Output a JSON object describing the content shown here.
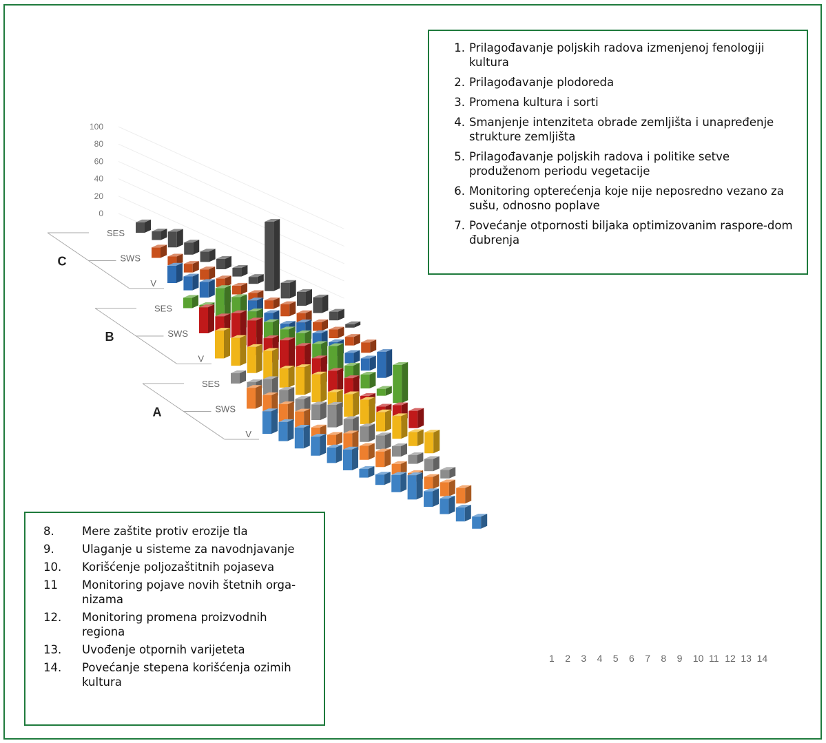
{
  "chart_data": {
    "type": "bar",
    "categories": [
      "1",
      "2",
      "3",
      "4",
      "5",
      "6",
      "7",
      "8",
      "9",
      "10",
      "11",
      "12",
      "13",
      "14"
    ],
    "x_tick_labels": [
      "1",
      "2",
      "3",
      "4",
      "5",
      "6",
      "7",
      "8",
      "9",
      "10",
      "11",
      "12",
      "13",
      "14"
    ],
    "y_ticks": [
      "100",
      "80",
      "60",
      "40",
      "20",
      "0"
    ],
    "ylim": [
      0,
      100
    ],
    "groups": [
      {
        "letter": "C",
        "rows": [
          {
            "label": "SES",
            "color": "#4d4d4d",
            "values": [
              12,
              10,
              18,
              14,
              12,
              12,
              10,
              8,
              80,
              18,
              16,
              18,
              10,
              4
            ]
          },
          {
            "label": "SWS",
            "color": "#c8501c",
            "values": [
              12,
              10,
              10,
              12,
              10,
              10,
              10,
              10,
              14,
              12,
              10,
              10,
              10,
              12
            ]
          },
          {
            "label": "V",
            "color": "#2e6db4",
            "values": [
              20,
              16,
              18,
              14,
              16,
              22,
              16,
              12,
              22,
              18,
              16,
              12,
              14,
              30
            ]
          }
        ]
      },
      {
        "letter": "B",
        "rows": [
          {
            "label": "SES",
            "color": "#5aa332",
            "values": [
              12,
              12,
              40,
              38,
              30,
              26,
              26,
              30,
              26,
              32,
              18,
              16,
              8,
              44
            ]
          },
          {
            "label": "SWS",
            "color": "#c0191a",
            "values": [
              30,
              28,
              40,
              40,
              28,
              34,
              36,
              30,
              24,
              24,
              12,
              8,
              18,
              20
            ]
          },
          {
            "label": "V",
            "color": "#f0b518",
            "values": [
              32,
              32,
              30,
              34,
              22,
              32,
              32,
              20,
              26,
              28,
              22,
              26,
              16,
              24
            ]
          }
        ]
      },
      {
        "letter": "A",
        "rows": [
          {
            "label": "SES",
            "color": "#8c8c8c",
            "values": [
              12,
              10,
              22,
              18,
              16,
              18,
              26,
              18,
              18,
              16,
              12,
              10,
              14,
              10
            ]
          },
          {
            "label": "SWS",
            "color": "#ee7f2e",
            "values": [
              24,
              24,
              22,
              22,
              12,
              12,
              22,
              16,
              18,
              12,
              10,
              14,
              16,
              18
            ]
          },
          {
            "label": "V",
            "color": "#3e82c4",
            "values": [
              26,
              22,
              24,
              22,
              18,
              24,
              10,
              12,
              20,
              28,
              18,
              18,
              16,
              14
            ]
          }
        ]
      }
    ]
  },
  "legend_top": [
    {
      "num": "1.",
      "text": "Prilagođavanje poljskih radova izmenjenoj fenologiji kultura"
    },
    {
      "num": "2.",
      "text": "Prilagođavanje plodoreda"
    },
    {
      "num": "3.",
      "text": "Promena kultura i sorti"
    },
    {
      "num": "4.",
      "text": "Smanjenje intenziteta obrade zemljišta i unapređenje strukture zemljišta"
    },
    {
      "num": "5.",
      "text": "Prilagođavanje poljskih radova i politike setve produženom periodu vegetacije"
    },
    {
      "num": "6.",
      "text": "Monitoring opterećenja koje nije neposredno vezano za sušu, odnosno poplave"
    },
    {
      "num": "7.",
      "text": "Povećanje otpornosti biljaka optimizovanim raspore-dom đubrenja"
    }
  ],
  "legend_bottom": [
    {
      "num": "8.",
      "text": "Mere zaštite protiv erozije tla"
    },
    {
      "num": "9.",
      "text": "Ulaganje u sisteme za navodnjavanje"
    },
    {
      "num": "10.",
      "text": "Korišćenje poljozaštitnih pojaseva"
    },
    {
      "num": "11",
      "text": "Monitoring pojave novih štetnih orga-nizama"
    },
    {
      "num": "12.",
      "text": "Monitoring promena proizvodnih regiona"
    },
    {
      "num": "13.",
      "text": "Uvođenje otpornih varijeteta"
    },
    {
      "num": "14.",
      "text": "Povećanje stepena korišćenja ozimih kultura"
    }
  ]
}
